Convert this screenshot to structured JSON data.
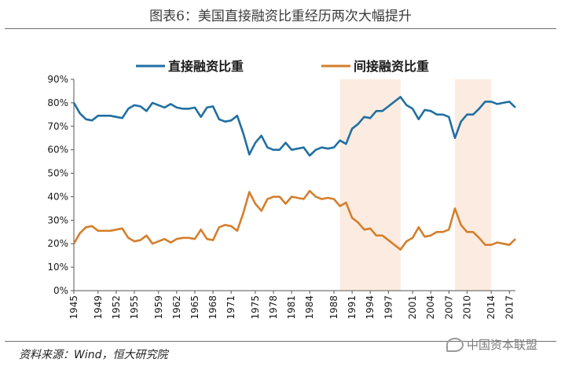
{
  "header": {
    "title": "图表6：美国直接融资比重经历两次大幅提升"
  },
  "footer": {
    "source": "资料来源：Wind，恒大研究院",
    "watermark": "中国资本联盟"
  },
  "chart_data": {
    "type": "line",
    "title": "美国直接融资比重经历两次大幅提升",
    "xlabel": "",
    "ylabel": "",
    "ylim": [
      0,
      90
    ],
    "yticks": [
      "0%",
      "10%",
      "20%",
      "30%",
      "40%",
      "50%",
      "60%",
      "70%",
      "80%",
      "90%"
    ],
    "xticks": [
      "1945",
      "1949",
      "1952",
      "1955",
      "1959",
      "1962",
      "1965",
      "1968",
      "1971",
      "1975",
      "1978",
      "1981",
      "1984",
      "1988",
      "1991",
      "1994",
      "1997",
      "2001",
      "2004",
      "2007",
      "2010",
      "2014",
      "2017"
    ],
    "highlight_periods": [
      [
        1989,
        1999
      ],
      [
        2008,
        2014
      ]
    ],
    "legend_position": "top",
    "series": [
      {
        "name": "直接融资比重",
        "color": "#1f6fa3",
        "x": [
          1945,
          1946,
          1947,
          1948,
          1949,
          1950,
          1951,
          1952,
          1953,
          1954,
          1955,
          1956,
          1957,
          1958,
          1959,
          1960,
          1961,
          1962,
          1963,
          1964,
          1965,
          1966,
          1967,
          1968,
          1969,
          1970,
          1971,
          1972,
          1973,
          1974,
          1975,
          1976,
          1977,
          1978,
          1979,
          1980,
          1981,
          1982,
          1983,
          1984,
          1985,
          1986,
          1987,
          1988,
          1989,
          1990,
          1991,
          1992,
          1993,
          1994,
          1995,
          1996,
          1997,
          1998,
          1999,
          2000,
          2001,
          2002,
          2003,
          2004,
          2005,
          2006,
          2007,
          2008,
          2009,
          2010,
          2011,
          2012,
          2013,
          2014,
          2015,
          2016,
          2017,
          2018
        ],
        "values": [
          80,
          75.5,
          73,
          72.5,
          74.5,
          74.5,
          74.5,
          74,
          73.5,
          77.5,
          79,
          78.5,
          76.5,
          80,
          79,
          78,
          79.5,
          78,
          77.5,
          77.5,
          78,
          74,
          78,
          78.5,
          73,
          72,
          72.5,
          74.5,
          67,
          58,
          63,
          66,
          61,
          60,
          60,
          63,
          60,
          60.5,
          61,
          57.5,
          60,
          61,
          60.5,
          61,
          64,
          62.5,
          69,
          71,
          74,
          73.5,
          76.5,
          76.5,
          78.5,
          80.5,
          82.5,
          79,
          77.5,
          73,
          77,
          76.5,
          75,
          75,
          74,
          65,
          72,
          75,
          75,
          77.5,
          80.5,
          80.5,
          79.5,
          80,
          80.5,
          78
        ]
      },
      {
        "name": "间接融资比重",
        "color": "#d47f2c",
        "x": [
          1945,
          1946,
          1947,
          1948,
          1949,
          1950,
          1951,
          1952,
          1953,
          1954,
          1955,
          1956,
          1957,
          1958,
          1959,
          1960,
          1961,
          1962,
          1963,
          1964,
          1965,
          1966,
          1967,
          1968,
          1969,
          1970,
          1971,
          1972,
          1973,
          1974,
          1975,
          1976,
          1977,
          1978,
          1979,
          1980,
          1981,
          1982,
          1983,
          1984,
          1985,
          1986,
          1987,
          1988,
          1989,
          1990,
          1991,
          1992,
          1993,
          1994,
          1995,
          1996,
          1997,
          1998,
          1999,
          2000,
          2001,
          2002,
          2003,
          2004,
          2005,
          2006,
          2007,
          2008,
          2009,
          2010,
          2011,
          2012,
          2013,
          2014,
          2015,
          2016,
          2017,
          2018
        ],
        "values": [
          20,
          24.5,
          27,
          27.5,
          25.5,
          25.5,
          25.5,
          26,
          26.5,
          22.5,
          21,
          21.5,
          23.5,
          20,
          21,
          22,
          20.5,
          22,
          22.5,
          22.5,
          22,
          26,
          22,
          21.5,
          27,
          28,
          27.5,
          25.5,
          33,
          42,
          37,
          34,
          39,
          40,
          40,
          37,
          40,
          39.5,
          39,
          42.5,
          40,
          39,
          39.5,
          39,
          36,
          37.5,
          31,
          29,
          26,
          26.5,
          23.5,
          23.5,
          21.5,
          19.5,
          17.5,
          21,
          22.5,
          27,
          23,
          23.5,
          25,
          25,
          26,
          35,
          28,
          25,
          25,
          22.5,
          19.5,
          19.5,
          20.5,
          20,
          19.5,
          22
        ]
      }
    ]
  }
}
